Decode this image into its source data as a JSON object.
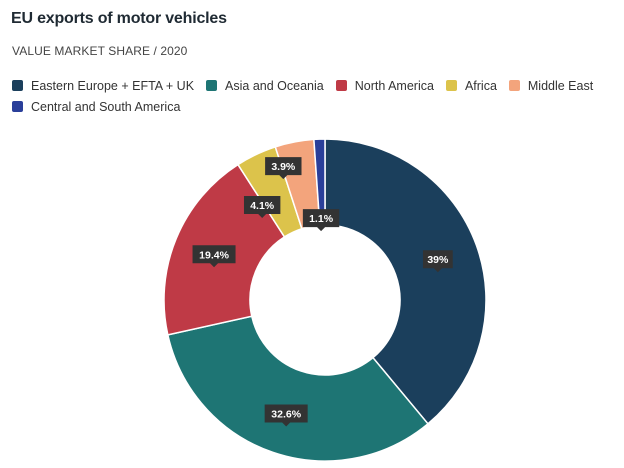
{
  "header": {
    "title": "EU exports of motor vehicles",
    "subtitle": "VALUE MARKET SHARE / 2020"
  },
  "chart_data": {
    "type": "pie",
    "variant": "donut",
    "title": "EU exports of motor vehicles",
    "subtitle": "VALUE MARKET SHARE / 2020",
    "legend_position": "top-left",
    "start_angle_deg": 0,
    "direction": "clockwise",
    "slices": [
      {
        "name": "Eastern Europe + EFTA + UK",
        "value": 39.0,
        "label": "39%",
        "color": "#1b3f5c"
      },
      {
        "name": "Asia and Oceania",
        "value": 32.6,
        "label": "32.6%",
        "color": "#1e7574"
      },
      {
        "name": "North America",
        "value": 19.4,
        "label": "19.4%",
        "color": "#bf3a46"
      },
      {
        "name": "Africa",
        "value": 4.1,
        "label": "4.1%",
        "color": "#dcc34b"
      },
      {
        "name": "Middle East",
        "value": 3.9,
        "label": "3.9%",
        "color": "#f3a47c"
      },
      {
        "name": "Central and South America",
        "value": 1.1,
        "label": "1.1%",
        "color": "#2a3f9a"
      }
    ]
  }
}
